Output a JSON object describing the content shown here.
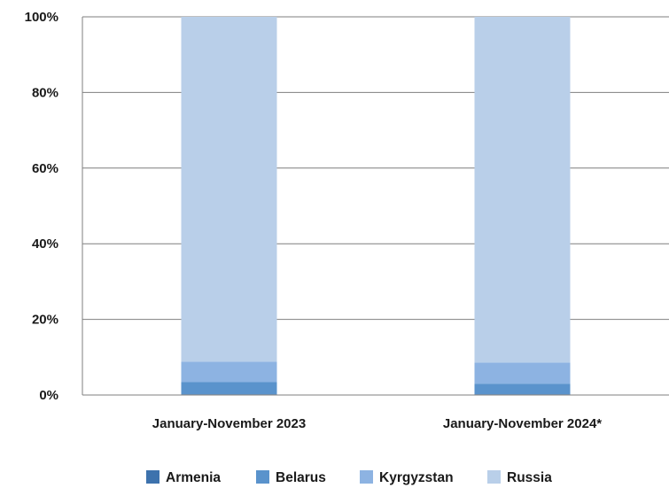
{
  "chart_data": {
    "type": "bar",
    "stacked": true,
    "percent": true,
    "categories": [
      "January-November  2023",
      "January-November 2024*"
    ],
    "series": [
      {
        "name": "Armenia",
        "color": "#3d72ad",
        "values": [
          0.2,
          0.2
        ]
      },
      {
        "name": "Belarus",
        "color": "#5a93cc",
        "values": [
          3.2,
          2.8
        ]
      },
      {
        "name": "Kyrgyzstan",
        "color": "#8db3e2",
        "values": [
          5.4,
          5.6
        ]
      },
      {
        "name": "Russia",
        "color": "#b9cfe9",
        "values": [
          91.2,
          91.4
        ]
      }
    ],
    "ylim": [
      0,
      100
    ],
    "yticks": [
      "0%",
      "20%",
      "40%",
      "60%",
      "80%",
      "100%"
    ],
    "grid": true,
    "legend_position": "bottom"
  }
}
